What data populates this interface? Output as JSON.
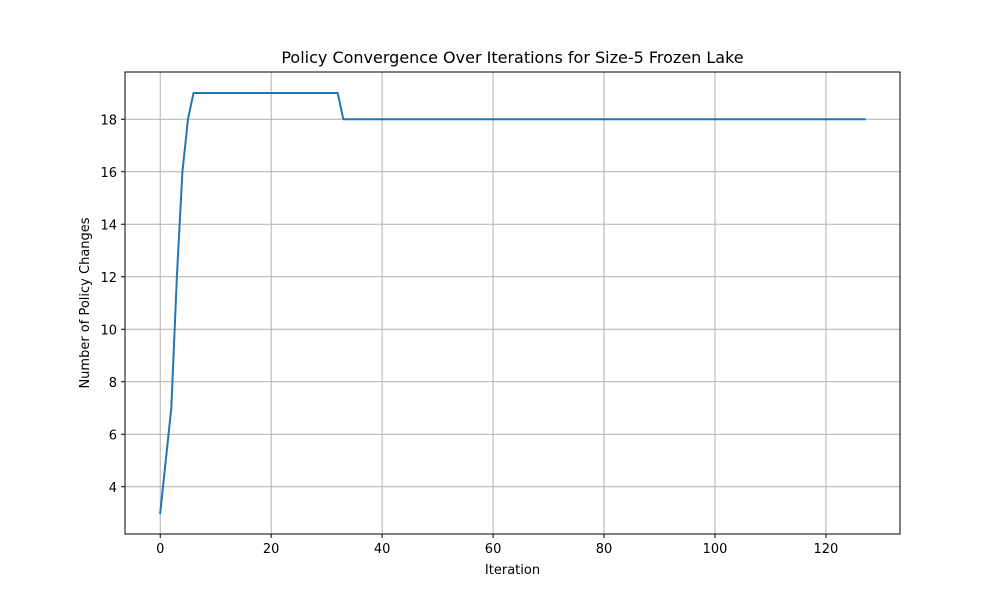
{
  "chart_data": {
    "type": "line",
    "title": "Policy Convergence Over Iterations for Size-5 Frozen Lake",
    "xlabel": "Iteration",
    "ylabel": "Number of Policy Changes",
    "xlim": [
      -6.35,
      133.35
    ],
    "ylim": [
      2.2,
      19.8
    ],
    "xticks": [
      0,
      20,
      40,
      60,
      80,
      100,
      120
    ],
    "yticks": [
      4,
      6,
      8,
      10,
      12,
      14,
      16,
      18
    ],
    "grid": true,
    "legend": "none",
    "series": [
      {
        "color": "#1f77b4",
        "x": [
          0,
          1,
          2,
          3,
          4,
          5,
          6,
          32,
          33,
          127
        ],
        "y": [
          3,
          5,
          7,
          12,
          16,
          18,
          19,
          19,
          18,
          18
        ]
      }
    ]
  }
}
